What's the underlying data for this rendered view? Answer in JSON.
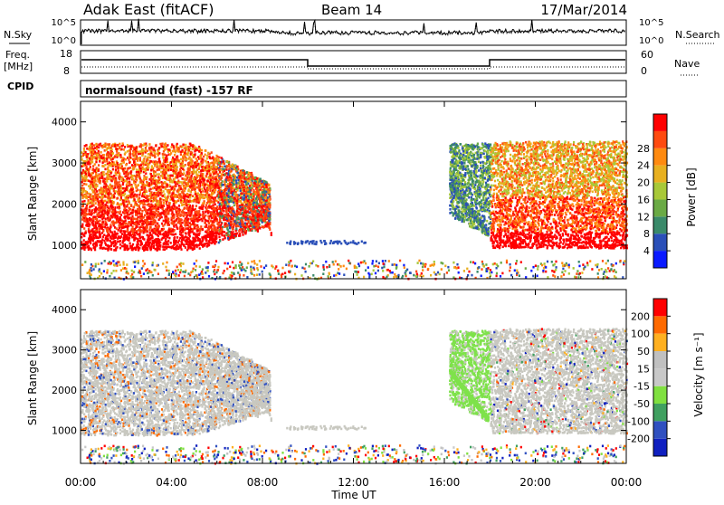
{
  "header": {
    "station": "Adak East (fitACF)",
    "beam": "Beam 14",
    "date": "17/Mar/2014"
  },
  "nsky_panel": {
    "left_label": "N.Sky",
    "right_label": "N.Search",
    "left_ticks": [
      "10^5",
      "10^0"
    ],
    "right_ticks": [
      "10^5",
      "10^0"
    ]
  },
  "freq_panel": {
    "left_label_1": "Freq.",
    "left_label_2": "[MHz]",
    "left_ticks": [
      "18",
      "8"
    ],
    "right_label": "Nave",
    "right_ticks": [
      "60",
      "0"
    ]
  },
  "cpid_panel": {
    "label": "CPID",
    "text": "normalsound (fast) -157 RF"
  },
  "colors": {
    "power": [
      "#0a1aff",
      "#2a4fb8",
      "#3a8a6a",
      "#6aaa45",
      "#a8c838",
      "#e8b020",
      "#ff8a10",
      "#ff4a10",
      "#ff0000"
    ],
    "velocity": [
      "#ff0000",
      "#ff6a00",
      "#ffb020",
      "#c0c0c0",
      "#c8c8c8",
      "#80e040",
      "#40a060",
      "#3050c0",
      "#1020c0"
    ],
    "velocity_gray": "#c8c8c0",
    "velocity_green": "#7ee24a"
  },
  "chart_data": [
    {
      "type": "heatmap",
      "quantity": "power",
      "ylabel": "Slant Range [km]",
      "yticks": [
        "1000",
        "2000",
        "3000",
        "4000"
      ],
      "ylim": [
        180,
        4500
      ],
      "xlim": [
        0,
        24
      ],
      "colorbar_label": "Power [dB]",
      "colorbar_ticks": [
        "4",
        "8",
        "12",
        "16",
        "20",
        "24",
        "28"
      ]
    },
    {
      "type": "heatmap",
      "quantity": "velocity",
      "ylabel": "Slant Range [km]",
      "yticks": [
        "1000",
        "2000",
        "3000",
        "4000"
      ],
      "ylim": [
        180,
        4500
      ],
      "xlim": [
        0,
        24
      ],
      "colorbar_label": "Velocity [m s⁻¹]",
      "colorbar_ticks": [
        "200",
        "100",
        "50",
        "15",
        "-15",
        "-50",
        "-100",
        "-200"
      ]
    }
  ],
  "xaxis": {
    "label": "Time UT",
    "ticks": [
      "00:00",
      "04:00",
      "08:00",
      "12:00",
      "16:00",
      "20:00",
      "00:00"
    ]
  }
}
